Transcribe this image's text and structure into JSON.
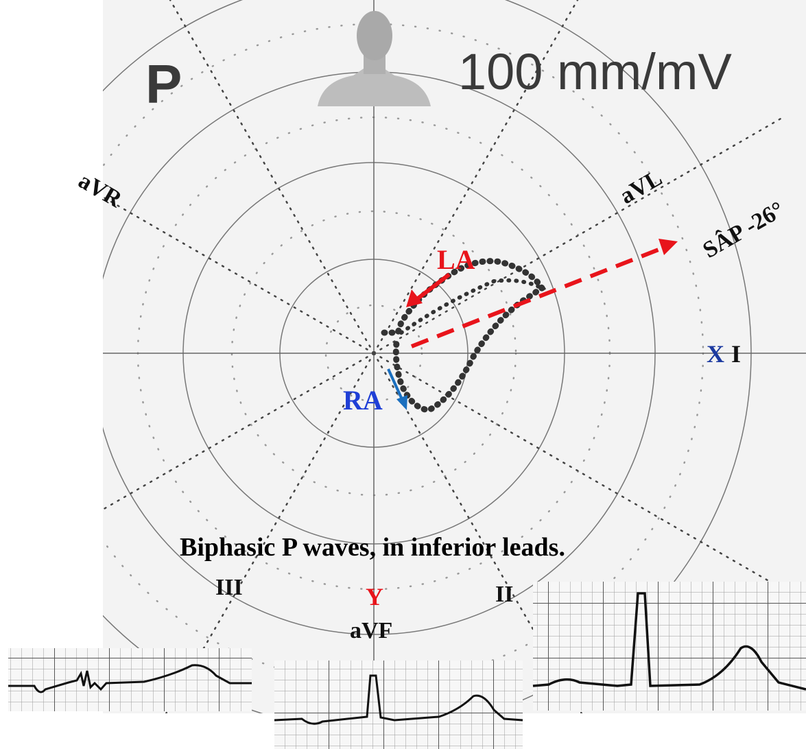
{
  "diagram": {
    "wave_label": "P",
    "scale": "100 mm/mV",
    "leads": {
      "avr": "aVR",
      "avl": "aVL",
      "i": "I",
      "ii": "II",
      "iii": "III",
      "avf": "aVF"
    },
    "axes": {
      "x": "X",
      "y": "Y"
    },
    "axis_label": "SÂP -26°",
    "atria": {
      "left": "LA",
      "right": "RA"
    },
    "caption": "Biphasic P waves, in inferior leads."
  }
}
